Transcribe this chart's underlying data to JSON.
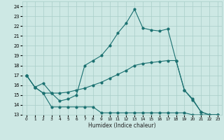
{
  "xlabel": "Humidex (Indice chaleur)",
  "x_ticks": [
    0,
    1,
    2,
    3,
    4,
    5,
    6,
    7,
    8,
    9,
    10,
    11,
    12,
    13,
    14,
    15,
    16,
    17,
    18,
    19,
    20,
    21,
    22,
    23
  ],
  "xlim": [
    -0.5,
    23.5
  ],
  "ylim": [
    13.0,
    24.5
  ],
  "y_ticks": [
    13,
    14,
    15,
    16,
    17,
    18,
    19,
    20,
    21,
    22,
    23,
    24
  ],
  "background_color": "#cde8e4",
  "grid_color": "#a8cec8",
  "line_color": "#1a7070",
  "line1_x": [
    0,
    1,
    2,
    3,
    4,
    5,
    6,
    7,
    8,
    9,
    10,
    11,
    12,
    13,
    14,
    15,
    16,
    17,
    18,
    19,
    20,
    21,
    22,
    23
  ],
  "line1_y": [
    17.0,
    15.8,
    16.2,
    15.2,
    14.4,
    14.6,
    15.0,
    18.0,
    18.5,
    19.0,
    20.0,
    21.3,
    22.3,
    23.7,
    21.8,
    21.6,
    21.5,
    21.7,
    18.5,
    15.5,
    14.6,
    13.3,
    13.0,
    13.0
  ],
  "line2_x": [
    0,
    1,
    2,
    3,
    4,
    5,
    6,
    7,
    8,
    9,
    10,
    11,
    12,
    13,
    14,
    15,
    16,
    17,
    18,
    19,
    20,
    21,
    22,
    23
  ],
  "line2_y": [
    17.0,
    15.8,
    15.2,
    15.2,
    15.2,
    15.3,
    15.5,
    15.7,
    16.0,
    16.3,
    16.7,
    17.1,
    17.5,
    18.0,
    18.2,
    18.3,
    18.4,
    18.5,
    18.5,
    15.5,
    14.5,
    13.3,
    13.0,
    13.0
  ],
  "line3_x": [
    0,
    1,
    2,
    3,
    4,
    5,
    6,
    7,
    8,
    9,
    10,
    11,
    12,
    13,
    14,
    15,
    16,
    17,
    18,
    19,
    20,
    21,
    22,
    23
  ],
  "line3_y": [
    17.0,
    15.8,
    15.2,
    13.8,
    13.8,
    13.8,
    13.8,
    13.8,
    13.8,
    13.2,
    13.2,
    13.2,
    13.2,
    13.2,
    13.2,
    13.2,
    13.2,
    13.2,
    13.2,
    13.2,
    13.0,
    13.0,
    13.0,
    13.0
  ]
}
